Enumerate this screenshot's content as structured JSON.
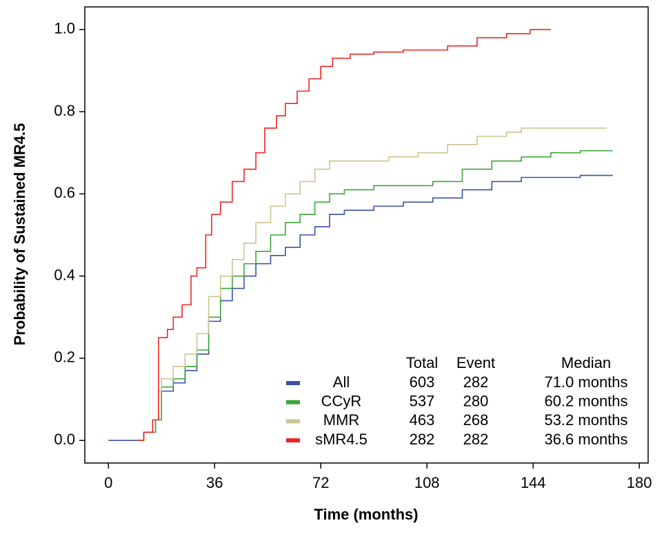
{
  "chart_data": {
    "type": "step",
    "x_label": "Time (months)",
    "y_label": "Probability of Sustained MR4.5",
    "xlim": [
      -8,
      183
    ],
    "ylim": [
      -0.055,
      1.055
    ],
    "xticks": [
      0,
      36,
      72,
      108,
      144,
      180
    ],
    "yticks": [
      {
        "value": 0,
        "label": "0.0"
      },
      {
        "value": 0.2,
        "label": "0.2"
      },
      {
        "value": 0.4,
        "label": "0.4"
      },
      {
        "value": 0.6,
        "label": "0.6"
      },
      {
        "value": 0.8,
        "label": "0.8"
      },
      {
        "value": 1,
        "label": "1.0"
      }
    ],
    "series": [
      {
        "name": "All",
        "color": "#3b4fa8",
        "x": [
          0,
          12,
          16,
          18,
          22,
          26,
          30,
          34,
          38,
          42,
          46,
          50,
          55,
          60,
          65,
          70,
          75,
          80,
          90,
          100,
          110,
          120,
          130,
          140,
          150,
          160,
          171
        ],
        "values": [
          0,
          0.02,
          0.05,
          0.12,
          0.14,
          0.17,
          0.21,
          0.29,
          0.34,
          0.37,
          0.4,
          0.43,
          0.45,
          0.47,
          0.5,
          0.52,
          0.55,
          0.56,
          0.57,
          0.58,
          0.59,
          0.61,
          0.63,
          0.64,
          0.64,
          0.645,
          0.645
        ]
      },
      {
        "name": "CCyR",
        "color": "#3aa636",
        "x": [
          10,
          12,
          16,
          18,
          22,
          26,
          30,
          34,
          38,
          42,
          46,
          50,
          55,
          60,
          65,
          70,
          75,
          80,
          90,
          100,
          110,
          120,
          130,
          140,
          150,
          160,
          171
        ],
        "values": [
          0,
          0.02,
          0.05,
          0.13,
          0.15,
          0.18,
          0.22,
          0.3,
          0.37,
          0.4,
          0.43,
          0.46,
          0.5,
          0.53,
          0.55,
          0.58,
          0.6,
          0.61,
          0.62,
          0.62,
          0.63,
          0.66,
          0.68,
          0.69,
          0.7,
          0.705,
          0.705
        ]
      },
      {
        "name": "MMR",
        "color": "#cfc38f",
        "x": [
          10,
          12,
          15,
          17,
          18,
          22,
          26,
          30,
          34,
          38,
          42,
          46,
          50,
          55,
          60,
          65,
          70,
          75,
          85,
          95,
          105,
          115,
          125,
          135,
          140,
          169
        ],
        "values": [
          0,
          0.02,
          0.05,
          0.12,
          0.15,
          0.18,
          0.21,
          0.26,
          0.35,
          0.4,
          0.44,
          0.48,
          0.53,
          0.57,
          0.6,
          0.63,
          0.66,
          0.68,
          0.68,
          0.69,
          0.7,
          0.72,
          0.74,
          0.75,
          0.76,
          0.76
        ]
      },
      {
        "name": "sMR4.5",
        "color": "#ee2424",
        "x": [
          10,
          12,
          15,
          17,
          20,
          22,
          25,
          28,
          30,
          33,
          35,
          38,
          42,
          46,
          50,
          53,
          57,
          60,
          64,
          68,
          72,
          76,
          82,
          90,
          100,
          115,
          125,
          135,
          143,
          150
        ],
        "values": [
          0,
          0.02,
          0.05,
          0.25,
          0.27,
          0.3,
          0.33,
          0.4,
          0.42,
          0.5,
          0.55,
          0.58,
          0.63,
          0.66,
          0.7,
          0.76,
          0.79,
          0.82,
          0.85,
          0.88,
          0.91,
          0.93,
          0.94,
          0.945,
          0.95,
          0.96,
          0.98,
          0.99,
          1.0,
          1.0
        ]
      }
    ],
    "legend_table": {
      "headers": [
        "Total",
        "Event",
        "Median"
      ],
      "rows": [
        {
          "total": 603,
          "event": 282,
          "median": "71.0 months"
        },
        {
          "total": 537,
          "event": 280,
          "median": "60.2 months"
        },
        {
          "total": 463,
          "event": 268,
          "median": "53.2 months"
        },
        {
          "total": 282,
          "event": 282,
          "median": "36.6 months"
        }
      ]
    }
  }
}
